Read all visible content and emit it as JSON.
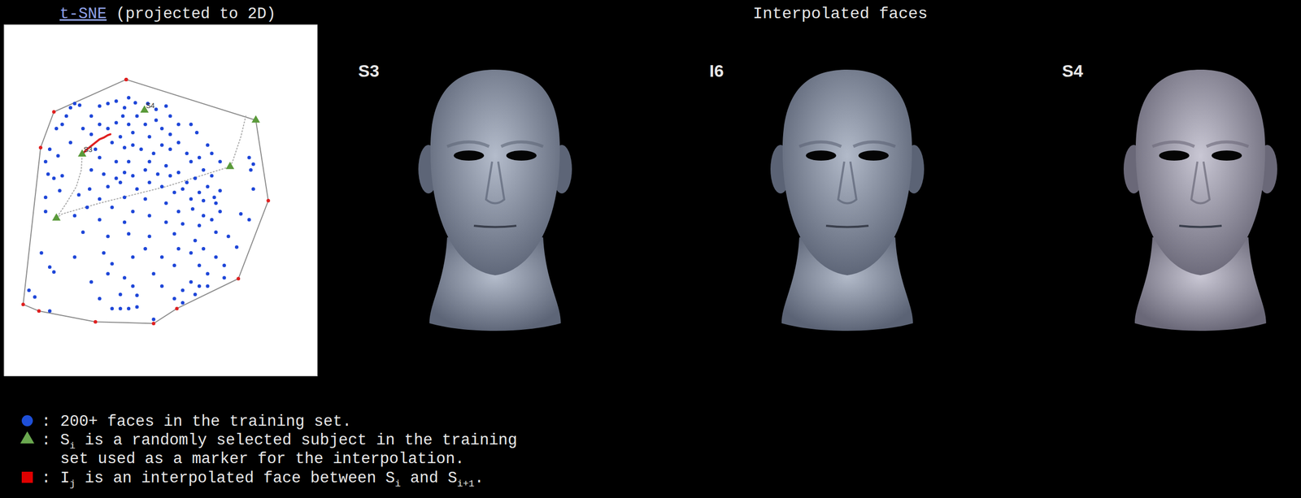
{
  "chart_data": {
    "type": "scatter",
    "title": "t-SNE (projected to 2D)",
    "xlim": [
      5,
      382
    ],
    "ylim": [
      453,
      30
    ],
    "tick_labels": false,
    "series": [
      {
        "type": "scatter",
        "color": "#1e46d8",
        "marker": "circle",
        "x": [
          90,
          85,
          96,
          120,
          130,
          140,
          150,
          155,
          163,
          165,
          178,
          188,
          200,
          205,
          80,
          110,
          148,
          68,
          75,
          100,
          120,
          130,
          140,
          155,
          160,
          175,
          188,
          195,
          215,
          230,
          237,
          110,
          145,
          180,
          205,
          250,
          60,
          70,
          55,
          85,
          135,
          150,
          160,
          170,
          185,
          195,
          205,
          215,
          225,
          240,
          255,
          265,
          120,
          140,
          155,
          180,
          200,
          230,
          300,
          305,
          115,
          58,
          65,
          75,
          110,
          125,
          140,
          150,
          160,
          175,
          190,
          205,
          215,
          225,
          235,
          245,
          255,
          130,
          145,
          165,
          180,
          195,
          210,
          220,
          240,
          250,
          258,
          265,
          55,
          72,
          95,
          108,
          120,
          150,
          175,
          200,
          230,
          245,
          260,
          305,
          302,
          55,
          90,
          105,
          135,
          160,
          180,
          215,
          232,
          245,
          255,
          265,
          290,
          300,
          120,
          150,
          200,
          220,
          240,
          260,
          275,
          100,
          130,
          155,
          180,
          210,
          235,
          50,
          90,
          125,
          135,
          160,
          175,
          195,
          215,
          230,
          245,
          260,
          270,
          285,
          60,
          65,
          130,
          150,
          185,
          210,
          240,
          250,
          230,
          270,
          110,
          35,
          42,
          160,
          195,
          220,
          235,
          120,
          145,
          165,
          210,
          240,
          135,
          145,
          155,
          165,
          60,
          185,
          220,
          250
        ],
        "values": [
          125,
          130,
          127,
          128,
          125,
          122,
          130,
          118,
          124,
          140,
          125,
          132,
          128,
          140,
          140,
          140,
          140,
          155,
          150,
          155,
          150,
          155,
          148,
          150,
          160,
          150,
          145,
          155,
          150,
          150,
          160,
          162,
          165,
          165,
          162,
          175,
          180,
          188,
          195,
          172,
          172,
          178,
          175,
          180,
          185,
          175,
          180,
          172,
          185,
          190,
          185,
          195,
          190,
          195,
          195,
          195,
          200,
          195,
          190,
          198,
          180,
          210,
          215,
          212,
          205,
          210,
          215,
          208,
          212,
          205,
          210,
          212,
          208,
          220,
          215,
          205,
          212,
          225,
          220,
          228,
          220,
          225,
          232,
          228,
          232,
          225,
          238,
          230,
          238,
          230,
          235,
          228,
          240,
          238,
          240,
          245,
          240,
          242,
          245,
          228,
          205,
          255,
          260,
          250,
          250,
          255,
          260,
          255,
          252,
          260,
          265,
          255,
          258,
          265,
          265,
          268,
          268,
          270,
          272,
          280,
          285,
          280,
          285,
          282,
          285,
          282,
          290,
          305,
          310,
          305,
          318,
          310,
          300,
          310,
          300,
          305,
          300,
          310,
          320,
          298,
          322,
          328,
          330,
          335,
          330,
          320,
          320,
          330,
          340,
          335,
          340,
          350,
          358,
          345,
          345,
          350,
          355,
          360,
          355,
          356,
          360,
          345,
          372,
          372,
          372,
          370,
          375,
          385,
          365,
          345
        ]
      },
      {
        "type": "line",
        "color": "#8a8a8a",
        "line_style": "solid",
        "marker": "circle",
        "x": [
          152,
          308,
          323,
          287,
          213,
          185,
          115,
          47,
          28,
          49,
          65,
          152
        ],
        "values": [
          96,
          145,
          242,
          336,
          372,
          390,
          388,
          375,
          367,
          178,
          135,
          96
        ]
      },
      {
        "type": "line",
        "color": "#a8a8a8",
        "line_style": "dotted",
        "x": [
          296,
          290,
          280,
          277,
          200,
          120,
          75,
          68,
          80,
          92,
          98,
          99
        ],
        "values": [
          140,
          165,
          195,
          201,
          225,
          245,
          258,
          263,
          245,
          225,
          205,
          186
        ]
      },
      {
        "type": "line",
        "color": "#e02020",
        "line_style": "solid",
        "x": [
          101,
          105,
          110,
          115,
          120,
          125,
          130,
          133
        ],
        "values": [
          184,
          180,
          176,
          172,
          168,
          166,
          163,
          162
        ]
      },
      {
        "type": "scatter",
        "color": "#5a9a3a",
        "marker": "triangle",
        "x": [
          308,
          277,
          68,
          99,
          174
        ],
        "values": [
          145,
          201,
          263,
          186,
          133
        ],
        "labels": [
          null,
          null,
          null,
          "S3",
          "S4"
        ]
      }
    ]
  },
  "faces": {
    "title": "Interpolated faces",
    "panels": [
      {
        "label": "S3"
      },
      {
        "label": "I6"
      },
      {
        "label": "S4"
      }
    ]
  },
  "legend": {
    "items": [
      {
        "marker": "circle",
        "color": "#1e4fd8",
        "lines": [
          [
            {
              "t": ": 200+ faces in the training set."
            }
          ]
        ]
      },
      {
        "marker": "triangle",
        "color": "#6aa84f",
        "lines": [
          [
            {
              "t": ": S"
            },
            {
              "sub": "i"
            },
            {
              "t": " is a randomly selected subject in the training"
            }
          ],
          [
            {
              "t": "set used as a marker for the interpolation."
            }
          ]
        ]
      },
      {
        "marker": "square",
        "color": "#e00000",
        "lines": [
          [
            {
              "t": ": I"
            },
            {
              "sub": "j"
            },
            {
              "t": " is an interpolated face between S"
            },
            {
              "sub": "i"
            },
            {
              "t": " and S"
            },
            {
              "sub": "i+1"
            },
            {
              "t": "."
            }
          ]
        ]
      }
    ]
  }
}
